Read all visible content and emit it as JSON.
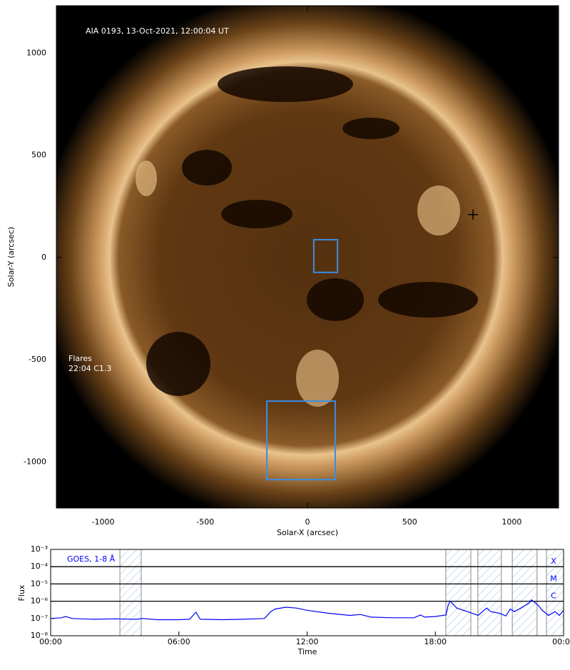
{
  "chart_data": [
    {
      "type": "image",
      "title": "AIA 0193, 13-Oct-2021, 12:00:04 UT",
      "annotations": [
        "Flares",
        "22:04 C1.3"
      ],
      "x_label": "Solar-X (arcsec)",
      "y_label": "Solar-Y (arcsec)",
      "xlim": [
        -1229,
        1229
      ],
      "ylim": [
        -1226,
        1232
      ],
      "xticks": [
        -1000,
        -500,
        0,
        500,
        1000
      ],
      "yticks": [
        -1000,
        -500,
        0,
        500,
        1000
      ],
      "region_color": "#3a8ee6",
      "regions": [
        {
          "x": [
            31,
            147
          ],
          "y": [
            -73,
            87
          ]
        },
        {
          "x": [
            -199,
            136
          ],
          "y": [
            -1087,
            -703
          ]
        }
      ],
      "marker": {
        "x": 810,
        "y": 210
      }
    },
    {
      "type": "line",
      "title": "GOES, 1-8 Å",
      "x_label": "Time",
      "y_label": "Flux",
      "log_y": true,
      "xlim": [
        0,
        24
      ],
      "xticks": [
        {
          "value": 0,
          "label": "00:00"
        },
        {
          "value": 6,
          "label": "06:00"
        },
        {
          "value": 12,
          "label": "12:00"
        },
        {
          "value": 18,
          "label": "18:00"
        },
        {
          "value": 24,
          "label": "00:00"
        }
      ],
      "ylim": [
        1e-08,
        0.001
      ],
      "yticks": [
        {
          "value": 1e-08,
          "label": "10⁻⁸"
        },
        {
          "value": 1e-07,
          "label": "10⁻⁷"
        },
        {
          "value": 1e-06,
          "label": "10⁻⁶"
        },
        {
          "value": 1e-05,
          "label": "10⁻⁵"
        },
        {
          "value": 0.0001,
          "label": "10⁻⁴"
        },
        {
          "value": 0.001,
          "label": "10⁻³"
        }
      ],
      "flare_classes": [
        {
          "label": "X",
          "value": 0.0001
        },
        {
          "label": "M",
          "value": 1e-05
        },
        {
          "label": "C",
          "value": 1e-06
        }
      ],
      "shaded_intervals": [
        [
          3.24,
          4.24
        ],
        [
          18.49,
          19.66
        ],
        [
          19.99,
          21.09
        ],
        [
          21.6,
          22.76
        ],
        [
          23.2,
          24
        ]
      ],
      "x": [
        0,
        0.5,
        0.7,
        1,
        2,
        3,
        4,
        4.3,
        5,
        6,
        6.5,
        6.8,
        7,
        8,
        9,
        10,
        10.3,
        10.5,
        11,
        11.5,
        12,
        13,
        14,
        14.5,
        15,
        16,
        17,
        17.3,
        17.5,
        18,
        18.5,
        18.6,
        18.7,
        19,
        19.5,
        20,
        20.4,
        20.6,
        21,
        21.3,
        21.5,
        21.7,
        22,
        22.4,
        22.5,
        22.8,
        23,
        23.3,
        23.6,
        23.8,
        24
      ],
      "series": [
        {
          "color": "#0000ff",
          "values": [
            1e-07,
            1.1e-07,
            1.3e-07,
            1e-07,
            9e-08,
            9.5e-08,
            9e-08,
            1e-07,
            8.5e-08,
            8.5e-08,
            9e-08,
            2.3e-07,
            9e-08,
            8.5e-08,
            9e-08,
            1e-07,
            2.5e-07,
            3.5e-07,
            4.5e-07,
            4e-07,
            3e-07,
            2e-07,
            1.5e-07,
            1.7e-07,
            1.2e-07,
            1.1e-07,
            1.1e-07,
            1.6e-07,
            1.2e-07,
            1.3e-07,
            1.6e-07,
            6e-07,
            1e-06,
            4e-07,
            2.5e-07,
            1.5e-07,
            4e-07,
            2.5e-07,
            2e-07,
            1.4e-07,
            3.5e-07,
            2.5e-07,
            4e-07,
            8e-07,
            1.2e-06,
            6e-07,
            3e-07,
            1.5e-07,
            2.5e-07,
            1.5e-07,
            3e-07
          ]
        }
      ]
    }
  ]
}
